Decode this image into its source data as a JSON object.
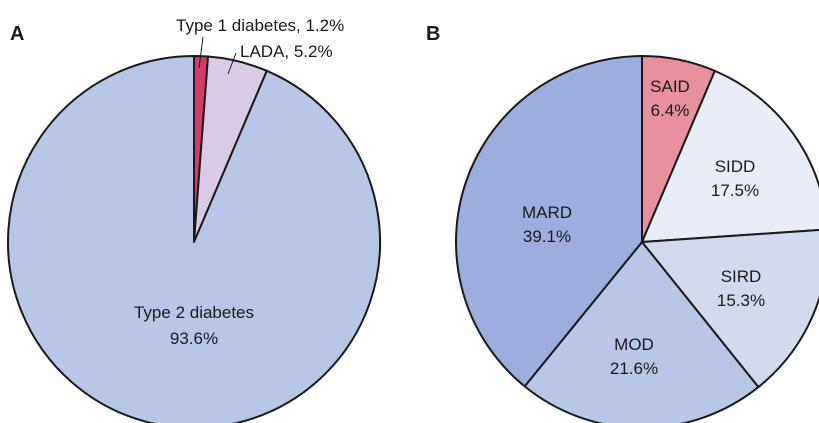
{
  "chart_data": [
    {
      "type": "pie",
      "panel": "A",
      "slices": [
        {
          "name": "Type 1 diabetes",
          "value": 1.2,
          "label": "Type 1 diabetes, 1.2%",
          "color": "#d63a6a"
        },
        {
          "name": "LADA",
          "value": 5.2,
          "label": "LADA, 5.2%",
          "color": "#d9cbe6"
        },
        {
          "name": "Type 2 diabetes",
          "value": 93.6,
          "label": "Type 2 diabetes",
          "percent_label": "93.6%",
          "color": "#b8c7e7"
        }
      ]
    },
    {
      "type": "pie",
      "panel": "B",
      "slices": [
        {
          "name": "SAID",
          "value": 6.4,
          "label": "SAID",
          "percent_label": "6.4%",
          "color": "#e8909e"
        },
        {
          "name": "SIDD",
          "value": 17.5,
          "label": "SIDD",
          "percent_label": "17.5%",
          "color": "#e8edf8"
        },
        {
          "name": "SIRD",
          "value": 15.3,
          "label": "SIRD",
          "percent_label": "15.3%",
          "color": "#d3daee"
        },
        {
          "name": "MOD",
          "value": 21.6,
          "label": "MOD",
          "percent_label": "21.6%",
          "color": "#b8c7e7"
        },
        {
          "name": "MARD",
          "value": 39.1,
          "label": "MARD",
          "percent_label": "39.1%",
          "color": "#9caedc"
        }
      ]
    }
  ]
}
